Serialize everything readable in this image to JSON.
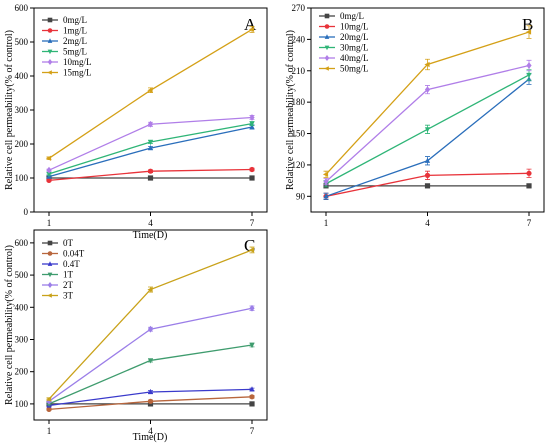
{
  "chart_data": [
    {
      "type": "line",
      "panel": "A",
      "x": [
        1,
        4,
        7
      ],
      "x_ticks": [
        "1",
        "4",
        "7"
      ],
      "xlabel": "Time(D)",
      "ylabel": "Relative cell permeability(% of control)",
      "ylim": [
        0,
        600
      ],
      "y_ticks": [
        0,
        100,
        200,
        300,
        400,
        500,
        600
      ],
      "legend_position": "top-left",
      "grid": false,
      "series": [
        {
          "name": "0mg/L",
          "color": "#444444",
          "marker": "square",
          "values": [
            100,
            100,
            100
          ],
          "errors": [
            2,
            2,
            2
          ]
        },
        {
          "name": "1mg/L",
          "color": "#e8333a",
          "marker": "circle",
          "values": [
            93,
            120,
            125
          ],
          "errors": [
            3,
            4,
            4
          ]
        },
        {
          "name": "2mg/L",
          "color": "#2a6ebb",
          "marker": "triangle",
          "values": [
            104,
            188,
            250
          ],
          "errors": [
            3,
            5,
            6
          ]
        },
        {
          "name": "5mg/L",
          "color": "#2fb577",
          "marker": "triangle-down",
          "values": [
            112,
            206,
            260
          ],
          "errors": [
            3,
            5,
            6
          ]
        },
        {
          "name": "10mg/L",
          "color": "#b07ee8",
          "marker": "diamond",
          "values": [
            123,
            258,
            278
          ],
          "errors": [
            3,
            6,
            6
          ]
        },
        {
          "name": "15mg/L",
          "color": "#d4a017",
          "marker": "triangle-left",
          "values": [
            158,
            358,
            537
          ],
          "errors": [
            4,
            7,
            9
          ]
        }
      ]
    },
    {
      "type": "line",
      "panel": "B",
      "x": [
        1,
        4,
        7
      ],
      "x_ticks": [
        "1",
        "4",
        "7"
      ],
      "xlabel": "",
      "ylabel": "Relative cell permeability(% of control)",
      "ylim": [
        75,
        270
      ],
      "y_ticks": [
        90,
        120,
        150,
        180,
        210,
        240,
        270
      ],
      "legend_position": "top-left",
      "grid": false,
      "series": [
        {
          "name": "0mg/L",
          "color": "#444444",
          "marker": "square",
          "values": [
            100,
            100,
            100
          ],
          "errors": [
            1,
            1,
            1
          ]
        },
        {
          "name": "10mg/L",
          "color": "#e8333a",
          "marker": "circle",
          "values": [
            90,
            110,
            112
          ],
          "errors": [
            3,
            4,
            4
          ]
        },
        {
          "name": "20mg/L",
          "color": "#2a6ebb",
          "marker": "triangle",
          "values": [
            90,
            124,
            202
          ],
          "errors": [
            3,
            4,
            5
          ]
        },
        {
          "name": "30mg/L",
          "color": "#2fb577",
          "marker": "triangle-down",
          "values": [
            102,
            154,
            206
          ],
          "errors": [
            3,
            4,
            5
          ]
        },
        {
          "name": "40mg/L",
          "color": "#b07ee8",
          "marker": "diamond",
          "values": [
            104,
            192,
            215
          ],
          "errors": [
            3,
            4,
            5
          ]
        },
        {
          "name": "50mg/L",
          "color": "#d4a017",
          "marker": "triangle-left",
          "values": [
            111,
            216,
            247
          ],
          "errors": [
            3,
            5,
            6
          ]
        }
      ]
    },
    {
      "type": "line",
      "panel": "C",
      "x": [
        1,
        4,
        7
      ],
      "x_ticks": [
        "1",
        "4",
        "7"
      ],
      "xlabel": "Time(D)",
      "ylabel": "Relative cell permeability(% of control)",
      "ylim": [
        50,
        640
      ],
      "y_ticks": [
        100,
        200,
        300,
        400,
        500,
        600
      ],
      "legend_position": "top-left",
      "grid": false,
      "series": [
        {
          "name": "0T",
          "color": "#444444",
          "marker": "square",
          "values": [
            100,
            100,
            100
          ],
          "errors": [
            2,
            2,
            2
          ]
        },
        {
          "name": "0.04T",
          "color": "#b8663d",
          "marker": "circle",
          "values": [
            83,
            108,
            122
          ],
          "errors": [
            3,
            4,
            4
          ]
        },
        {
          "name": "0.4T",
          "color": "#3a3acb",
          "marker": "triangle",
          "values": [
            95,
            137,
            145
          ],
          "errors": [
            3,
            4,
            4
          ]
        },
        {
          "name": "1T",
          "color": "#3f9c6e",
          "marker": "triangle-down",
          "values": [
            100,
            235,
            283
          ],
          "errors": [
            3,
            5,
            6
          ]
        },
        {
          "name": "2T",
          "color": "#9b7ee8",
          "marker": "diamond",
          "values": [
            108,
            332,
            397
          ],
          "errors": [
            3,
            6,
            7
          ]
        },
        {
          "name": "3T",
          "color": "#c9a21a",
          "marker": "triangle-left",
          "values": [
            115,
            455,
            578
          ],
          "errors": [
            4,
            8,
            9
          ]
        }
      ]
    }
  ]
}
